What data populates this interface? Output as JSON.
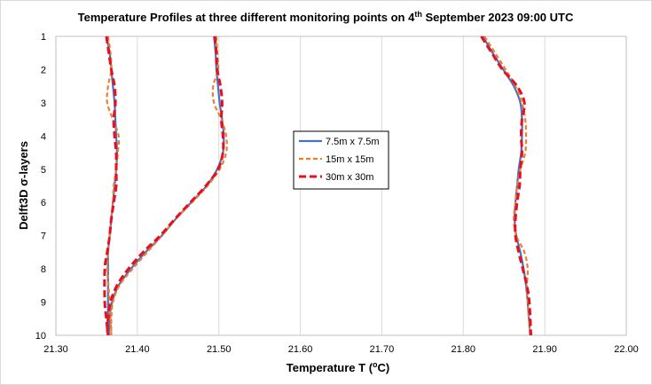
{
  "chart_data": {
    "type": "line",
    "title": "Temperature Profiles at three different monitoring points on 4th September 2023 09:00 UTC",
    "title_parts": {
      "before": "Temperature Profiles at three different monitoring points on 4",
      "sup": "th",
      "after": " September 2023 09:00 UTC"
    },
    "xlabel": "Temperature T (",
    "xlabel_sup": "o",
    "xlabel_after": "C)",
    "ylabel": "Delft3D σ-layers",
    "xlim": [
      21.3,
      22.0
    ],
    "ylim": [
      1,
      10
    ],
    "y_inverted": true,
    "x_ticks": [
      "21.30",
      "21.40",
      "21.50",
      "21.60",
      "21.70",
      "21.80",
      "21.90",
      "22.00"
    ],
    "y_ticks": [
      "1",
      "2",
      "3",
      "4",
      "5",
      "6",
      "7",
      "8",
      "9",
      "10"
    ],
    "grid": "vertical",
    "legend_position": "center",
    "series": [
      {
        "name": "7.5m x 7.5m",
        "color": "#4472C4",
        "dash": "solid",
        "profiles": [
          {
            "x": [
              21.362,
              21.366,
              21.368,
              21.37,
              21.372,
              21.373,
              21.374,
              21.375,
              21.374,
              21.372,
              21.37,
              21.368,
              21.366,
              21.364,
              21.364,
              21.364
            ],
            "y": [
              1,
              1.5,
              2,
              2.5,
              3,
              3.5,
              4,
              4.5,
              5,
              5.5,
              6,
              6.5,
              7,
              7.5,
              8,
              10
            ]
          },
          {
            "x": [
              21.494,
              21.496,
              21.497,
              21.499,
              21.501,
              21.504,
              21.506,
              21.505,
              21.498,
              21.485,
              21.466,
              21.447,
              21.43,
              21.41,
              21.392,
              21.377,
              21.369,
              21.366,
              21.365
            ],
            "y": [
              1,
              1.5,
              2,
              2.5,
              3,
              3.5,
              4,
              4.5,
              5,
              5.5,
              6,
              6.5,
              7,
              7.5,
              8,
              8.5,
              9,
              9.5,
              10
            ]
          },
          {
            "x": [
              21.824,
              21.836,
              21.849,
              21.862,
              21.87,
              21.872,
              21.872,
              21.871,
              21.868,
              21.866,
              21.864,
              21.863,
              21.865,
              21.87,
              21.874,
              21.877,
              21.879,
              21.882
            ],
            "y": [
              1,
              1.5,
              2,
              2.5,
              3,
              3.5,
              4,
              4.5,
              5,
              5.5,
              6,
              6.5,
              7,
              7.5,
              8,
              8.5,
              9,
              10
            ]
          }
        ]
      },
      {
        "name": "15m x 15m",
        "color": "#ED7D31",
        "dash": "5 3",
        "profiles": [
          {
            "x": [
              21.364,
              21.367,
              21.368,
              21.364,
              21.363,
              21.37,
              21.377,
              21.376,
              21.374,
              21.371,
              21.37,
              21.368,
              21.366,
              21.364,
              21.363,
              21.366,
              21.368
            ],
            "y": [
              1,
              1.5,
              2,
              2.5,
              3,
              3.5,
              4,
              4.5,
              5,
              5.5,
              6,
              6.5,
              7,
              7.5,
              8,
              9,
              10
            ]
          },
          {
            "x": [
              21.497,
              21.498,
              21.499,
              21.493,
              21.494,
              21.503,
              21.509,
              21.509,
              21.501,
              21.486,
              21.467,
              21.447,
              21.43,
              21.412,
              21.394,
              21.378,
              21.37,
              21.368,
              21.368
            ],
            "y": [
              1,
              1.5,
              2,
              2.5,
              3,
              3.5,
              4,
              4.5,
              5,
              5.5,
              6,
              6.5,
              7,
              7.5,
              8,
              8.5,
              9,
              9.5,
              10
            ]
          },
          {
            "x": [
              21.826,
              21.839,
              21.852,
              21.864,
              21.872,
              21.876,
              21.877,
              21.876,
              21.87,
              21.866,
              21.864,
              21.862,
              21.865,
              21.875,
              21.879,
              21.878,
              21.879,
              21.882
            ],
            "y": [
              1,
              1.5,
              2,
              2.5,
              3,
              3.5,
              4,
              4.5,
              5,
              5.5,
              6,
              6.5,
              7,
              7.5,
              8,
              8.5,
              9,
              10
            ]
          }
        ]
      },
      {
        "name": "30m x 30m",
        "color": "#E8101F",
        "dash": "8 4",
        "profiles": [
          {
            "x": [
              21.362,
              21.365,
              21.368,
              21.372,
              21.373,
              21.371,
              21.372,
              21.374,
              21.374,
              21.374,
              21.371,
              21.368,
              21.366,
              21.363,
              21.36,
              21.36,
              21.362,
              21.364
            ],
            "y": [
              1,
              1.5,
              2,
              2.5,
              3,
              3.5,
              4,
              4.5,
              5,
              5.5,
              6,
              6.5,
              7,
              7.5,
              8,
              9,
              9.5,
              10
            ]
          },
          {
            "x": [
              21.495,
              21.497,
              21.498,
              21.502,
              21.504,
              21.503,
              21.505,
              21.505,
              21.499,
              21.484,
              21.465,
              21.446,
              21.428,
              21.407,
              21.389,
              21.375,
              21.367,
              21.364,
              21.363
            ],
            "y": [
              1,
              1.5,
              2,
              2.5,
              3,
              3.5,
              4,
              4.5,
              5,
              5.5,
              6,
              6.5,
              7,
              7.5,
              8,
              8.5,
              9,
              9.5,
              10
            ]
          },
          {
            "x": [
              21.822,
              21.835,
              21.848,
              21.866,
              21.875,
              21.872,
              21.871,
              21.872,
              21.87,
              21.869,
              21.866,
              21.864,
              21.864,
              21.868,
              21.873,
              21.878,
              21.881,
              21.883
            ],
            "y": [
              1,
              1.5,
              2,
              2.5,
              3,
              3.5,
              4,
              4.5,
              5,
              5.5,
              6,
              6.5,
              7,
              7.5,
              8,
              8.5,
              9,
              10
            ]
          }
        ]
      }
    ]
  }
}
